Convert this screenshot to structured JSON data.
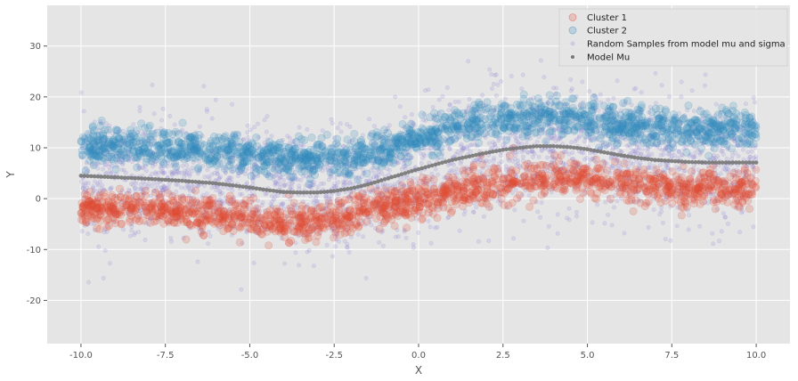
{
  "chart_data": {
    "type": "scatter",
    "title": "",
    "xlabel": "X",
    "ylabel": "Y",
    "xlim": [
      -11,
      11
    ],
    "ylim": [
      -28.5,
      38
    ],
    "xticks": [
      -10.0,
      -7.5,
      -5.0,
      -2.5,
      0.0,
      2.5,
      5.0,
      7.5,
      10.0
    ],
    "xtick_labels": [
      "-10.0",
      "-7.5",
      "-5.0",
      "-2.5",
      "0.0",
      "2.5",
      "5.0",
      "7.5",
      "10.0"
    ],
    "yticks": [
      -20,
      -10,
      0,
      10,
      20,
      30
    ],
    "ytick_labels": [
      "-20",
      "-10",
      "0",
      "10",
      "20",
      "30"
    ],
    "grid": true,
    "style": "ggplot",
    "legend_position": "top-right",
    "x_range": [
      -10,
      10
    ],
    "series": [
      {
        "name": "Cluster 1",
        "marker": "circle-large",
        "color": "#E24A33",
        "alpha": 0.2,
        "x": [
          -10,
          -8,
          -6,
          -4,
          -3,
          -2,
          -1,
          0,
          1,
          2,
          3,
          4,
          5,
          6,
          7,
          8,
          9,
          10
        ],
        "y": [
          -2,
          -2,
          -3,
          -5,
          -5,
          -3.5,
          -1.5,
          -0.5,
          1,
          2.5,
          3.5,
          4,
          4,
          3,
          2.5,
          2,
          2,
          2
        ],
        "spread": 3.5
      },
      {
        "name": "Cluster 2",
        "marker": "circle-large",
        "color": "#348ABD",
        "alpha": 0.2,
        "x": [
          -10,
          -8,
          -6,
          -4,
          -3,
          -2,
          -1,
          0,
          1,
          2,
          3,
          4,
          5,
          6,
          7,
          8,
          9,
          10
        ],
        "y": [
          10,
          10.5,
          9.5,
          8,
          7.5,
          8,
          9.5,
          12,
          14,
          15.5,
          16,
          16,
          15.5,
          14.5,
          14,
          13.5,
          13.5,
          14
        ],
        "spread": 3.5
      },
      {
        "name": "Random Samples from model mu and sigma",
        "marker": "circle-small",
        "color": "#988ED5",
        "alpha": 0.2,
        "x": [
          -10,
          -8,
          -6,
          -4,
          -3,
          -2,
          -1,
          0,
          1,
          2,
          3,
          4,
          5,
          6,
          7,
          8,
          9,
          10
        ],
        "y": [
          4.5,
          4,
          3,
          1.5,
          1.2,
          1.5,
          3.5,
          6,
          7.5,
          9,
          10,
          10.3,
          10,
          9,
          8,
          7.2,
          7,
          7
        ],
        "spread": 10
      },
      {
        "name": "Model Mu",
        "marker": "dot",
        "color": "#777777",
        "alpha": 0.9,
        "x": [
          -10,
          -9,
          -8,
          -7,
          -6,
          -5,
          -4.5,
          -4,
          -3.5,
          -3,
          -2.5,
          -2,
          -1.5,
          -1,
          -0.5,
          0,
          0.5,
          1,
          1.5,
          2,
          2.5,
          3,
          3.5,
          4,
          4.5,
          5,
          5.5,
          6,
          6.5,
          7,
          7.5,
          8,
          8.5,
          9,
          9.5,
          10
        ],
        "y": [
          4.5,
          4.2,
          3.9,
          3.5,
          3.0,
          2.2,
          1.7,
          1.3,
          1.2,
          1.2,
          1.5,
          2.0,
          2.8,
          3.8,
          4.8,
          5.8,
          6.7,
          7.6,
          8.3,
          9.0,
          9.6,
          10.0,
          10.3,
          10.3,
          10.1,
          9.7,
          9.1,
          8.5,
          8.0,
          7.6,
          7.4,
          7.2,
          7.1,
          7.1,
          7.1,
          7.1
        ]
      }
    ]
  }
}
